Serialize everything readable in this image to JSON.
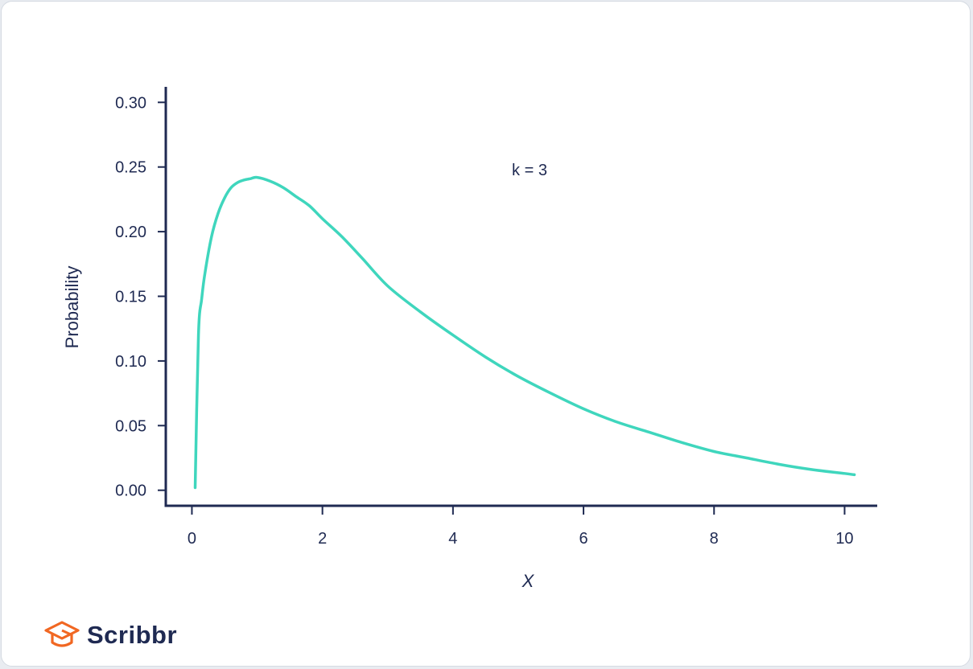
{
  "brand": {
    "name": "Scribbr",
    "accent_color": "#f16722",
    "icon": "graduation-cap-icon"
  },
  "chart_data": {
    "type": "line",
    "title": "",
    "xlabel": "X",
    "ylabel": "Probability",
    "xlim": [
      -0.4,
      10.5
    ],
    "ylim": [
      -0.012,
      0.312
    ],
    "x_ticks": [
      0,
      2,
      4,
      6,
      8,
      10
    ],
    "x_tick_labels": [
      "0",
      "2",
      "4",
      "6",
      "8",
      "10"
    ],
    "y_ticks": [
      0.0,
      0.05,
      0.1,
      0.15,
      0.2,
      0.25,
      0.3
    ],
    "y_tick_labels": [
      "0.00",
      "0.05",
      "0.10",
      "0.15",
      "0.20",
      "0.25",
      "0.30"
    ],
    "grid": false,
    "annotation": "k = 3",
    "line_color": "#3fd6bd",
    "axis_color": "#1f2a52",
    "series": [
      {
        "x": [
          0.05,
          0.1,
          0.15,
          0.2,
          0.3,
          0.4,
          0.5,
          0.6,
          0.7,
          0.8,
          0.9,
          1.0,
          1.2,
          1.4,
          1.6,
          1.8,
          2.0,
          2.3,
          2.6,
          3.0,
          3.5,
          4.0,
          4.5,
          5.0,
          5.5,
          6.0,
          6.5,
          7.0,
          7.5,
          8.0,
          8.5,
          9.0,
          9.5,
          10.0,
          10.15
        ],
        "y": [
          0.002,
          0.12,
          0.148,
          0.168,
          0.196,
          0.214,
          0.226,
          0.234,
          0.238,
          0.24,
          0.241,
          0.242,
          0.239,
          0.234,
          0.227,
          0.22,
          0.21,
          0.196,
          0.18,
          0.158,
          0.138,
          0.12,
          0.103,
          0.088,
          0.075,
          0.063,
          0.053,
          0.045,
          0.037,
          0.03,
          0.025,
          0.02,
          0.016,
          0.013,
          0.012
        ]
      }
    ]
  }
}
